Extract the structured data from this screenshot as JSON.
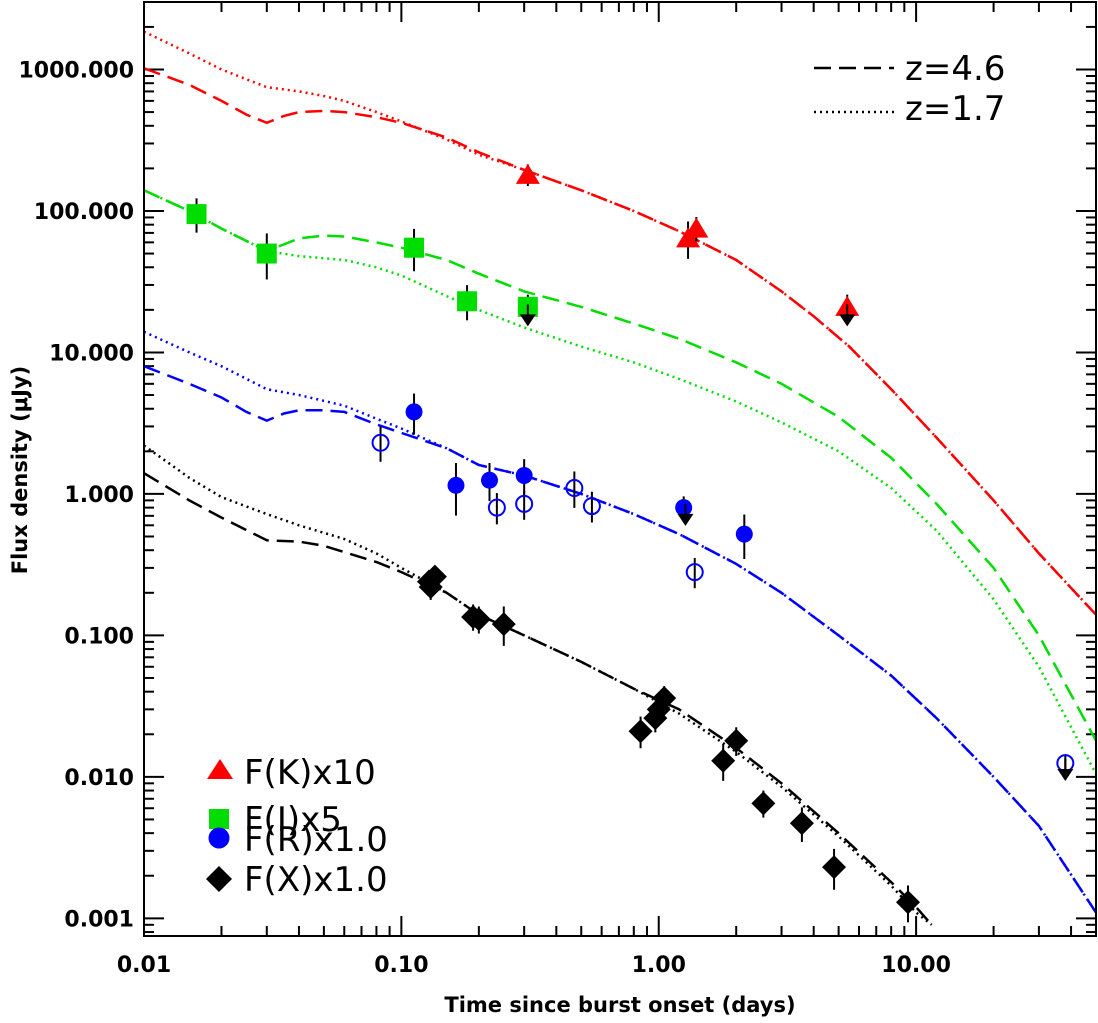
{
  "chart_data": {
    "type": "scatter",
    "x_scale": "log",
    "y_scale": "log",
    "xlabel": "Time since burst onset (days)",
    "ylabel": "Flux density (μJy)",
    "xlim": [
      0.01,
      50
    ],
    "ylim": [
      0.00075,
      3000
    ],
    "x_ticks": [
      {
        "value": 0.01,
        "label": "0.01"
      },
      {
        "value": 0.1,
        "label": "0.10"
      },
      {
        "value": 1,
        "label": "1.00"
      },
      {
        "value": 10,
        "label": "10.00"
      }
    ],
    "y_ticks": [
      {
        "value": 0.001,
        "label": "0.001"
      },
      {
        "value": 0.01,
        "label": "0.010"
      },
      {
        "value": 0.1,
        "label": "0.100"
      },
      {
        "value": 1,
        "label": "1.000"
      },
      {
        "value": 10,
        "label": "10.000"
      },
      {
        "value": 100,
        "label": "100.000"
      },
      {
        "value": 1000,
        "label": "1000.000"
      }
    ],
    "line_legend": [
      {
        "style": "dashed",
        "label": "z=4.6"
      },
      {
        "style": "dotted",
        "label": "z=1.7"
      }
    ],
    "series": [
      {
        "name": "F(K)x10",
        "color": "#ff0000",
        "marker": "triangle",
        "points": [
          {
            "x": 0.31,
            "y": 180,
            "err": 20
          },
          {
            "x": 1.3,
            "y": 64,
            "err": 15
          },
          {
            "x": 1.4,
            "y": 75,
            "err": 10
          },
          {
            "x": 5.4,
            "y": 21,
            "err": 3
          }
        ],
        "model_z46": [
          [
            0.01,
            1020
          ],
          [
            0.015,
            780
          ],
          [
            0.02,
            600
          ],
          [
            0.025,
            480
          ],
          [
            0.03,
            420
          ],
          [
            0.035,
            470
          ],
          [
            0.04,
            500
          ],
          [
            0.05,
            510
          ],
          [
            0.06,
            500
          ],
          [
            0.08,
            460
          ],
          [
            0.1,
            420
          ],
          [
            0.15,
            330
          ],
          [
            0.2,
            260
          ],
          [
            0.3,
            195
          ],
          [
            0.5,
            140
          ],
          [
            0.8,
            100
          ],
          [
            1.2,
            72
          ],
          [
            2,
            45
          ],
          [
            3,
            27
          ],
          [
            4,
            18
          ],
          [
            5.5,
            11
          ],
          [
            8,
            5.5
          ],
          [
            12,
            2.5
          ],
          [
            20,
            0.9
          ],
          [
            30,
            0.38
          ],
          [
            50,
            0.14
          ]
        ],
        "model_z17": [
          [
            0.01,
            1850
          ],
          [
            0.015,
            1300
          ],
          [
            0.02,
            1000
          ],
          [
            0.03,
            750
          ],
          [
            0.04,
            700
          ],
          [
            0.05,
            650
          ],
          [
            0.06,
            600
          ],
          [
            0.08,
            500
          ],
          [
            0.1,
            430
          ],
          [
            0.15,
            320
          ],
          [
            0.2,
            250
          ],
          [
            0.3,
            195
          ],
          [
            0.5,
            140
          ],
          [
            0.8,
            100
          ],
          [
            1.2,
            72
          ],
          [
            2,
            45
          ],
          [
            3,
            27
          ],
          [
            4,
            18
          ],
          [
            5.5,
            11
          ],
          [
            8,
            5.5
          ],
          [
            12,
            2.5
          ],
          [
            20,
            0.9
          ],
          [
            30,
            0.38
          ],
          [
            50,
            0.14
          ]
        ]
      },
      {
        "name": "F(I)x5",
        "color": "#00dd00",
        "marker": "square",
        "points": [
          {
            "x": 0.016,
            "y": 95,
            "err": 20
          },
          {
            "x": 0.03,
            "y": 50,
            "err": 15
          },
          {
            "x": 0.112,
            "y": 55,
            "err": 15
          },
          {
            "x": 0.18,
            "y": 23,
            "err": 5
          },
          {
            "x": 0.31,
            "y": 21,
            "err": 3
          }
        ],
        "model_z46": [
          [
            0.01,
            140
          ],
          [
            0.015,
            100
          ],
          [
            0.02,
            75
          ],
          [
            0.03,
            52
          ],
          [
            0.04,
            64
          ],
          [
            0.05,
            67
          ],
          [
            0.06,
            66
          ],
          [
            0.08,
            60
          ],
          [
            0.1,
            55
          ],
          [
            0.15,
            45
          ],
          [
            0.2,
            36
          ],
          [
            0.3,
            27
          ],
          [
            0.5,
            21
          ],
          [
            0.8,
            16
          ],
          [
            1.2,
            12.5
          ],
          [
            2,
            8.5
          ],
          [
            3,
            6
          ],
          [
            5,
            3.5
          ],
          [
            8,
            1.8
          ],
          [
            12,
            0.85
          ],
          [
            20,
            0.3
          ],
          [
            30,
            0.1
          ],
          [
            50,
            0.018
          ]
        ],
        "model_z17": [
          [
            0.01,
            140
          ],
          [
            0.015,
            100
          ],
          [
            0.02,
            75
          ],
          [
            0.03,
            52
          ],
          [
            0.04,
            48
          ],
          [
            0.06,
            45
          ],
          [
            0.08,
            40
          ],
          [
            0.1,
            35
          ],
          [
            0.15,
            25
          ],
          [
            0.2,
            20
          ],
          [
            0.3,
            15
          ],
          [
            0.5,
            11
          ],
          [
            0.8,
            8.5
          ],
          [
            1.2,
            6.5
          ],
          [
            2,
            4.5
          ],
          [
            3,
            3.2
          ],
          [
            5,
            2
          ],
          [
            8,
            1.1
          ],
          [
            12,
            0.55
          ],
          [
            20,
            0.18
          ],
          [
            30,
            0.06
          ],
          [
            50,
            0.0105
          ]
        ]
      },
      {
        "name": "F(R)x1.0",
        "color": "#0000ff",
        "marker": "circle",
        "points": [
          {
            "x": 0.112,
            "y": 3.8,
            "err": 1.0,
            "filled": true
          },
          {
            "x": 0.083,
            "y": 2.3,
            "err": 0.5,
            "filled": false
          },
          {
            "x": 0.163,
            "y": 1.15,
            "err": 0.4,
            "filled": true
          },
          {
            "x": 0.22,
            "y": 1.25,
            "err": 0.3,
            "filled": true
          },
          {
            "x": 0.235,
            "y": 0.8,
            "err": 0.15,
            "filled": false
          },
          {
            "x": 0.3,
            "y": 1.35,
            "err": 0.3,
            "filled": true
          },
          {
            "x": 0.3,
            "y": 0.85,
            "err": 0.15,
            "filled": false
          },
          {
            "x": 0.47,
            "y": 1.1,
            "err": 0.25,
            "filled": false
          },
          {
            "x": 0.55,
            "y": 0.82,
            "err": 0.15,
            "filled": false
          },
          {
            "x": 1.25,
            "y": 0.8,
            "err": 0.1,
            "filled": true
          },
          {
            "x": 2.15,
            "y": 0.52,
            "err": 0.15,
            "filled": true
          },
          {
            "x": 1.38,
            "y": 0.28,
            "err": 0.05,
            "filled": false
          },
          {
            "x": 38,
            "y": 0.0125,
            "err": 0.001,
            "filled": false
          }
        ],
        "model_z46": [
          [
            0.01,
            8
          ],
          [
            0.015,
            6
          ],
          [
            0.02,
            4.8
          ],
          [
            0.025,
            3.8
          ],
          [
            0.03,
            3.3
          ],
          [
            0.035,
            3.7
          ],
          [
            0.04,
            3.9
          ],
          [
            0.05,
            3.9
          ],
          [
            0.06,
            3.8
          ],
          [
            0.08,
            3.1
          ],
          [
            0.1,
            2.7
          ],
          [
            0.15,
            2.1
          ],
          [
            0.2,
            1.6
          ],
          [
            0.3,
            1.35
          ],
          [
            0.5,
            1.0
          ],
          [
            0.8,
            0.72
          ],
          [
            1.2,
            0.52
          ],
          [
            2,
            0.32
          ],
          [
            3,
            0.2
          ],
          [
            5,
            0.1
          ],
          [
            8,
            0.052
          ],
          [
            12,
            0.026
          ],
          [
            20,
            0.01
          ],
          [
            30,
            0.0045
          ],
          [
            50,
            0.0011
          ]
        ],
        "model_z17": [
          [
            0.01,
            14
          ],
          [
            0.015,
            10
          ],
          [
            0.02,
            8
          ],
          [
            0.03,
            5.5
          ],
          [
            0.04,
            5.0
          ],
          [
            0.06,
            4.2
          ],
          [
            0.08,
            3.4
          ],
          [
            0.1,
            2.9
          ],
          [
            0.15,
            2.1
          ],
          [
            0.2,
            1.6
          ],
          [
            0.3,
            1.35
          ],
          [
            0.5,
            1.0
          ],
          [
            0.8,
            0.72
          ],
          [
            1.2,
            0.52
          ],
          [
            2,
            0.32
          ],
          [
            3,
            0.2
          ],
          [
            5,
            0.1
          ],
          [
            8,
            0.052
          ],
          [
            12,
            0.026
          ],
          [
            20,
            0.01
          ],
          [
            30,
            0.0045
          ],
          [
            50,
            0.0011
          ]
        ]
      },
      {
        "name": "F(X)x1.0",
        "color": "#000000",
        "marker": "diamond",
        "points": [
          {
            "x": 0.128,
            "y": 0.24,
            "err": 0.03
          },
          {
            "x": 0.13,
            "y": 0.22,
            "err": 0.03
          },
          {
            "x": 0.135,
            "y": 0.26,
            "err": 0.03
          },
          {
            "x": 0.19,
            "y": 0.135,
            "err": 0.02
          },
          {
            "x": 0.2,
            "y": 0.13,
            "err": 0.02
          },
          {
            "x": 0.25,
            "y": 0.12,
            "err": 0.03
          },
          {
            "x": 0.85,
            "y": 0.021,
            "err": 0.004
          },
          {
            "x": 0.97,
            "y": 0.026,
            "err": 0.004
          },
          {
            "x": 1.0,
            "y": 0.03,
            "err": 0.004
          },
          {
            "x": 1.05,
            "y": 0.036,
            "err": 0.005
          },
          {
            "x": 1.78,
            "y": 0.013,
            "err": 0.003
          },
          {
            "x": 2.0,
            "y": 0.018,
            "err": 0.003
          },
          {
            "x": 2.55,
            "y": 0.0065,
            "err": 0.001
          },
          {
            "x": 3.6,
            "y": 0.0047,
            "err": 0.001
          },
          {
            "x": 4.8,
            "y": 0.0023,
            "err": 0.0006
          },
          {
            "x": 9.3,
            "y": 0.0013,
            "err": 0.0003
          }
        ],
        "model_z46": [
          [
            0.01,
            1.4
          ],
          [
            0.015,
            0.9
          ],
          [
            0.02,
            0.68
          ],
          [
            0.03,
            0.47
          ],
          [
            0.04,
            0.46
          ],
          [
            0.05,
            0.43
          ],
          [
            0.08,
            0.33
          ],
          [
            0.1,
            0.28
          ],
          [
            0.15,
            0.2
          ],
          [
            0.2,
            0.14
          ],
          [
            0.3,
            0.1
          ],
          [
            0.5,
            0.065
          ],
          [
            0.8,
            0.042
          ],
          [
            1.2,
            0.03
          ],
          [
            2,
            0.016
          ],
          [
            3,
            0.009
          ],
          [
            5,
            0.004
          ],
          [
            8,
            0.0018
          ],
          [
            10,
            0.0012
          ],
          [
            11.5,
            0.0009
          ]
        ],
        "model_z17": [
          [
            0.01,
            2.2
          ],
          [
            0.015,
            1.3
          ],
          [
            0.02,
            0.95
          ],
          [
            0.03,
            0.72
          ],
          [
            0.04,
            0.6
          ],
          [
            0.06,
            0.48
          ],
          [
            0.08,
            0.38
          ],
          [
            0.1,
            0.3
          ],
          [
            0.15,
            0.2
          ],
          [
            0.2,
            0.14
          ],
          [
            0.3,
            0.1
          ],
          [
            0.5,
            0.065
          ],
          [
            0.8,
            0.042
          ],
          [
            1.2,
            0.028
          ],
          [
            2,
            0.015
          ],
          [
            3,
            0.0085
          ],
          [
            5,
            0.0038
          ],
          [
            8,
            0.0017
          ],
          [
            10,
            0.0011
          ],
          [
            11.5,
            0.0009
          ]
        ]
      }
    ],
    "upper_limits": [
      {
        "x": 0.31,
        "y": 18
      },
      {
        "x": 1.27,
        "y": 0.7
      },
      {
        "x": 5.4,
        "y": 18
      },
      {
        "x": 38,
        "y": 0.011
      }
    ]
  }
}
